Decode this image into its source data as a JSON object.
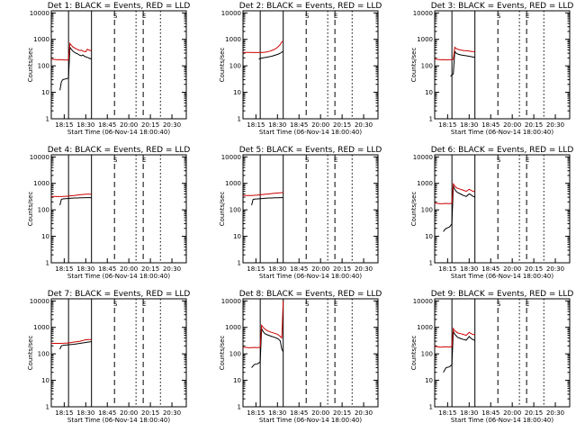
{
  "chart_data": {
    "type": "line",
    "layout": {
      "rows": 3,
      "cols": 3
    },
    "colors": {
      "events": "#000000",
      "lld": "#cc0000",
      "axes": "#000000"
    },
    "xaxis": {
      "label": "Start Time (06-Nov-14 18:00:40)",
      "range": [
        "18:06",
        "20:40"
      ],
      "tick_labels": [
        "18:15",
        "18:30",
        "18:45",
        "20:00",
        "20:15",
        "20:30"
      ],
      "scale": "linear"
    },
    "yaxis": {
      "label": "Counts/sec",
      "scale": "log",
      "range": [
        1,
        12000
      ],
      "tick_labels": [
        "1",
        "10",
        "100",
        "1000",
        "10000"
      ]
    },
    "markers": [
      {
        "time": "18:18",
        "style": "solid",
        "label": ""
      },
      {
        "time": "18:34",
        "style": "solid",
        "label": ""
      },
      {
        "time": "18:50",
        "style": "dashed",
        "label": "S"
      },
      {
        "time": "20:05",
        "style": "dotted",
        "label": ""
      },
      {
        "time": "20:10",
        "style": "dashed",
        "label": "E"
      },
      {
        "time": "20:22",
        "style": "dotted",
        "label": ""
      }
    ],
    "panels": [
      {
        "title": "Det 1: BLACK = Events, RED = LLD",
        "series": [
          {
            "name": "Events",
            "x": [
              "18:12",
              "18:13",
              "18:14",
              "18:16",
              "18:17",
              "18:18",
              "18:19",
              "18:20",
              "18:21",
              "18:22",
              "18:23",
              "18:24",
              "18:25",
              "18:26",
              "18:27",
              "18:28",
              "18:29",
              "18:30",
              "18:31",
              "18:32",
              "18:33",
              "18:34"
            ],
            "values": [
              12,
              25,
              30,
              32,
              33,
              35,
              500,
              420,
              360,
              330,
              300,
              290,
              270,
              250,
              240,
              260,
              230,
              220,
              210,
              200,
              190,
              180
            ]
          },
          {
            "name": "LLD",
            "x": [
              "18:06",
              "18:08",
              "18:10",
              "18:12",
              "18:14",
              "18:16",
              "18:18",
              "18:19",
              "18:20",
              "18:21",
              "18:22",
              "18:23",
              "18:24",
              "18:25",
              "18:26",
              "18:27",
              "18:28",
              "18:29",
              "18:30",
              "18:31",
              "18:32",
              "18:33",
              "18:34"
            ],
            "values": [
              180,
              175,
              170,
              172,
              168,
              165,
              170,
              700,
              600,
              520,
              480,
              450,
              420,
              400,
              380,
              390,
              360,
              350,
              340,
              420,
              400,
              380,
              370
            ]
          }
        ]
      },
      {
        "title": "Det 2: BLACK = Events, RED = LLD",
        "series": [
          {
            "name": "Events",
            "x": [
              "18:17",
              "18:18",
              "18:20",
              "18:22",
              "18:24",
              "18:26",
              "18:28",
              "18:30",
              "18:32",
              "18:33",
              "18:34"
            ],
            "values": [
              180,
              190,
              200,
              210,
              220,
              230,
              250,
              270,
              300,
              330,
              350
            ]
          },
          {
            "name": "LLD",
            "x": [
              "18:06",
              "18:08",
              "18:10",
              "18:12",
              "18:14",
              "18:16",
              "18:18",
              "18:20",
              "18:22",
              "18:24",
              "18:26",
              "18:28",
              "18:30",
              "18:32",
              "18:33",
              "18:34"
            ],
            "values": [
              320,
              320,
              320,
              320,
              318,
              318,
              320,
              320,
              330,
              350,
              380,
              420,
              500,
              650,
              800,
              850
            ]
          }
        ]
      },
      {
        "title": "Det 3: BLACK = Events, RED = LLD",
        "series": [
          {
            "name": "Events",
            "x": [
              "18:17",
              "18:18",
              "18:19",
              "18:20",
              "18:21",
              "18:22",
              "18:24",
              "18:26",
              "18:28",
              "18:30",
              "18:32",
              "18:34"
            ],
            "values": [
              40,
              45,
              50,
              350,
              300,
              280,
              260,
              250,
              240,
              230,
              220,
              210
            ]
          },
          {
            "name": "LLD",
            "x": [
              "18:06",
              "18:08",
              "18:10",
              "18:12",
              "18:14",
              "18:16",
              "18:18",
              "18:19",
              "18:20",
              "18:21",
              "18:22",
              "18:24",
              "18:26",
              "18:28",
              "18:30",
              "18:32",
              "18:34"
            ],
            "values": [
              180,
              175,
              170,
              172,
              168,
              170,
              170,
              175,
              500,
              450,
              420,
              400,
              380,
              370,
              360,
              350,
              340
            ]
          }
        ]
      },
      {
        "title": "Det 4: BLACK = Events, RED = LLD",
        "series": [
          {
            "name": "Events",
            "x": [
              "18:12",
              "18:13",
              "18:14",
              "18:16",
              "18:18",
              "18:20",
              "18:22",
              "18:24",
              "18:26",
              "18:28",
              "18:30",
              "18:32",
              "18:34"
            ],
            "values": [
              150,
              250,
              260,
              265,
              270,
              275,
              280,
              280,
              285,
              285,
              290,
              290,
              290
            ]
          },
          {
            "name": "LLD",
            "x": [
              "18:06",
              "18:08",
              "18:10",
              "18:12",
              "18:14",
              "18:16",
              "18:18",
              "18:20",
              "18:22",
              "18:24",
              "18:26",
              "18:28",
              "18:30",
              "18:32",
              "18:34"
            ],
            "values": [
              320,
              320,
              318,
              318,
              320,
              325,
              330,
              340,
              350,
              360,
              370,
              380,
              390,
              390,
              390
            ]
          }
        ]
      },
      {
        "title": "Det 5: BLACK = Events, RED = LLD",
        "series": [
          {
            "name": "Events",
            "x": [
              "18:12",
              "18:13",
              "18:14",
              "18:16",
              "18:18",
              "18:20",
              "18:22",
              "18:24",
              "18:26",
              "18:28",
              "18:30",
              "18:32",
              "18:34"
            ],
            "values": [
              150,
              250,
              255,
              260,
              265,
              270,
              275,
              280,
              280,
              285,
              285,
              290,
              290
            ]
          },
          {
            "name": "LLD",
            "x": [
              "18:06",
              "18:08",
              "18:10",
              "18:12",
              "18:14",
              "18:16",
              "18:18",
              "18:20",
              "18:22",
              "18:24",
              "18:26",
              "18:28",
              "18:30",
              "18:32",
              "18:34"
            ],
            "values": [
              350,
              350,
              348,
              350,
              355,
              360,
              370,
              380,
              390,
              400,
              410,
              420,
              430,
              440,
              450
            ]
          }
        ]
      },
      {
        "title": "Det 6: BLACK = Events, RED = LLD",
        "series": [
          {
            "name": "Events",
            "x": [
              "18:12",
              "18:13",
              "18:14",
              "18:16",
              "18:17",
              "18:18",
              "18:19",
              "18:20",
              "18:21",
              "18:22",
              "18:24",
              "18:26",
              "18:28",
              "18:30",
              "18:31",
              "18:32",
              "18:34"
            ],
            "values": [
              15,
              18,
              20,
              22,
              25,
              30,
              800,
              600,
              500,
              450,
              400,
              350,
              320,
              400,
              380,
              340,
              300
            ]
          },
          {
            "name": "LLD",
            "x": [
              "18:06",
              "18:08",
              "18:10",
              "18:12",
              "18:14",
              "18:16",
              "18:18",
              "18:19",
              "18:20",
              "18:21",
              "18:22",
              "18:24",
              "18:26",
              "18:28",
              "18:30",
              "18:31",
              "18:32",
              "18:34"
            ],
            "values": [
              180,
              175,
              170,
              172,
              175,
              170,
              180,
              950,
              800,
              700,
              650,
              600,
              550,
              500,
              600,
              560,
              520,
              480
            ]
          }
        ]
      },
      {
        "title": "Det 7: BLACK = Events, RED = LLD",
        "series": [
          {
            "name": "Events",
            "x": [
              "18:12",
              "18:13",
              "18:14",
              "18:16",
              "18:18",
              "18:20",
              "18:22",
              "18:24",
              "18:26",
              "18:28",
              "18:30",
              "18:32",
              "18:34"
            ],
            "values": [
              150,
              200,
              210,
              215,
              220,
              225,
              230,
              240,
              250,
              260,
              270,
              280,
              290
            ]
          },
          {
            "name": "LLD",
            "x": [
              "18:06",
              "18:08",
              "18:10",
              "18:12",
              "18:14",
              "18:16",
              "18:18",
              "18:20",
              "18:22",
              "18:24",
              "18:26",
              "18:28",
              "18:30",
              "18:32",
              "18:34"
            ],
            "values": [
              250,
              250,
              250,
              250,
              252,
              255,
              260,
              270,
              280,
              290,
              300,
              320,
              340,
              350,
              350
            ]
          }
        ]
      },
      {
        "title": "Det 8: BLACK = Events, RED = LLD",
        "series": [
          {
            "name": "Events",
            "x": [
              "18:12",
              "18:13",
              "18:14",
              "18:16",
              "18:17",
              "18:18",
              "18:19",
              "18:20",
              "18:21",
              "18:22",
              "18:24",
              "18:26",
              "18:28",
              "18:30",
              "18:31",
              "18:32",
              "18:33",
              "18:34"
            ],
            "values": [
              30,
              35,
              40,
              42,
              45,
              50,
              900,
              700,
              600,
              550,
              500,
              450,
              420,
              380,
              350,
              300,
              150,
              120
            ]
          },
          {
            "name": "LLD",
            "x": [
              "18:06",
              "18:08",
              "18:10",
              "18:12",
              "18:14",
              "18:16",
              "18:18",
              "18:19",
              "18:20",
              "18:21",
              "18:22",
              "18:24",
              "18:26",
              "18:28",
              "18:30",
              "18:31",
              "18:32",
              "18:33",
              "18:34"
            ],
            "values": [
              180,
              175,
              170,
              172,
              175,
              170,
              180,
              1200,
              1000,
              900,
              800,
              700,
              650,
              600,
              550,
              500,
              450,
              400,
              10000
            ]
          }
        ]
      },
      {
        "title": "Det 9: BLACK = Events, RED = LLD",
        "series": [
          {
            "name": "Events",
            "x": [
              "18:12",
              "18:13",
              "18:14",
              "18:16",
              "18:17",
              "18:18",
              "18:19",
              "18:20",
              "18:21",
              "18:22",
              "18:24",
              "18:26",
              "18:28",
              "18:30",
              "18:31",
              "18:32",
              "18:34"
            ],
            "values": [
              20,
              25,
              30,
              32,
              35,
              40,
              700,
              550,
              480,
              420,
              380,
              350,
              330,
              450,
              400,
              360,
              320
            ]
          },
          {
            "name": "LLD",
            "x": [
              "18:06",
              "18:08",
              "18:10",
              "18:12",
              "18:14",
              "18:16",
              "18:18",
              "18:19",
              "18:20",
              "18:21",
              "18:22",
              "18:24",
              "18:26",
              "18:28",
              "18:30",
              "18:31",
              "18:32",
              "18:34"
            ],
            "values": [
              190,
              185,
              180,
              182,
              185,
              180,
              190,
              900,
              750,
              680,
              620,
              580,
              540,
              500,
              650,
              600,
              560,
              520
            ]
          }
        ]
      }
    ]
  }
}
